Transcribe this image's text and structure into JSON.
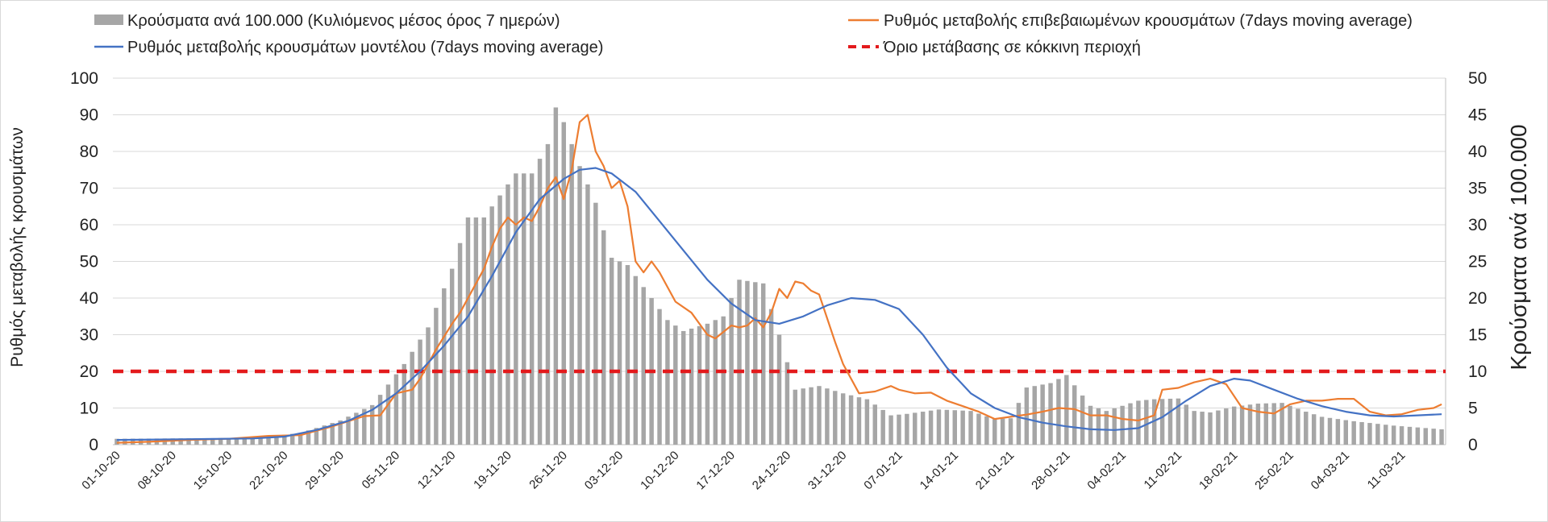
{
  "chart_data": {
    "type": "bar",
    "legend": {
      "placement": "top",
      "items": [
        {
          "label": "Κρούσματα ανά 100.000 (Κυλιόμενος μέσος όρος 7 ημερών)",
          "kind": "bar",
          "color": "#a6a6a6"
        },
        {
          "label": "Ρυθμός μεταβολής επιβεβαιωμένων κρουσμάτων (7days moving average)",
          "kind": "line",
          "color": "#ed7d31"
        },
        {
          "label": "Ρυθμός μεταβολής κρουσμάτων μοντέλου (7days moving average)",
          "kind": "line",
          "color": "#4472c4"
        },
        {
          "label": "Όριο μετάβασης σε κόκκινη περιοχή",
          "kind": "dashed",
          "color": "#e31a1c"
        }
      ]
    },
    "ylabel": "Ρυθμός μεταβολής κρουσμάτων",
    "y2label": "Κρούσματα ανά 100.000",
    "ylim": [
      0,
      100
    ],
    "y2lim": [
      0,
      50
    ],
    "yticks": [
      "0",
      "10",
      "20",
      "30",
      "40",
      "50",
      "60",
      "70",
      "80",
      "90",
      "100"
    ],
    "y2ticks": [
      "0",
      "5",
      "10",
      "15",
      "20",
      "25",
      "30",
      "35",
      "40",
      "45",
      "50"
    ],
    "grid": true,
    "x_start": "2020-10-01",
    "x_end": "2021-03-16",
    "xticks": [
      "01-10-20",
      "08-10-20",
      "15-10-20",
      "22-10-20",
      "29-10-20",
      "05-11-20",
      "12-11-20",
      "19-11-20",
      "26-11-20",
      "03-12-20",
      "10-12-20",
      "17-12-20",
      "24-12-20",
      "31-12-20",
      "07-01-21",
      "14-01-21",
      "21-01-21",
      "28-01-21",
      "04-02-21",
      "11-02-21",
      "18-02-21",
      "25-02-21",
      "04-03-21",
      "11-03-21"
    ],
    "threshold": 20,
    "bar_keypoints": [
      [
        "2020-10-01",
        0.8
      ],
      [
        "2020-10-15",
        0.9
      ],
      [
        "2020-10-20",
        1.1
      ],
      [
        "2020-10-24",
        1.6
      ],
      [
        "2020-10-29",
        3.3
      ],
      [
        "2020-11-02",
        5.4
      ],
      [
        "2020-11-06",
        11
      ],
      [
        "2020-11-09",
        16
      ],
      [
        "2020-11-12",
        24
      ],
      [
        "2020-11-14",
        31
      ],
      [
        "2020-11-16",
        31
      ],
      [
        "2020-11-20",
        37
      ],
      [
        "2020-11-22",
        37
      ],
      [
        "2020-11-24",
        41
      ],
      [
        "2020-11-25",
        46
      ],
      [
        "2020-11-26",
        44
      ],
      [
        "2020-11-28",
        38
      ],
      [
        "2020-11-30",
        33
      ],
      [
        "2020-12-02",
        25.5
      ],
      [
        "2020-12-04",
        24.5
      ],
      [
        "2020-12-07",
        20
      ],
      [
        "2020-12-09",
        17
      ],
      [
        "2020-12-11",
        15.5
      ],
      [
        "2020-12-14",
        16.5
      ],
      [
        "2020-12-16",
        17.5
      ],
      [
        "2020-12-18",
        22.5
      ],
      [
        "2020-12-21",
        22
      ],
      [
        "2020-12-23",
        15
      ],
      [
        "2020-12-25",
        7.5
      ],
      [
        "2020-12-28",
        8
      ],
      [
        "2020-12-31",
        7
      ],
      [
        "2021-01-03",
        6.2
      ],
      [
        "2021-01-06",
        4
      ],
      [
        "2021-01-08",
        4.2
      ],
      [
        "2021-01-12",
        4.8
      ],
      [
        "2021-01-16",
        4.6
      ],
      [
        "2021-01-19",
        3.5
      ],
      [
        "2021-01-21",
        3.6
      ],
      [
        "2021-01-23",
        7.8
      ],
      [
        "2021-01-26",
        8.4
      ],
      [
        "2021-01-28",
        9.5
      ],
      [
        "2021-01-31",
        5.3
      ],
      [
        "2021-02-02",
        4.6
      ],
      [
        "2021-02-04",
        5.3
      ],
      [
        "2021-02-06",
        6
      ],
      [
        "2021-02-08",
        6.2
      ],
      [
        "2021-02-11",
        6.3
      ],
      [
        "2021-02-13",
        4.6
      ],
      [
        "2021-02-15",
        4.4
      ],
      [
        "2021-02-18",
        5.2
      ],
      [
        "2021-02-21",
        5.6
      ],
      [
        "2021-02-24",
        5.7
      ],
      [
        "2021-02-27",
        4.5
      ],
      [
        "2021-03-01",
        3.8
      ],
      [
        "2021-03-05",
        3.2
      ],
      [
        "2021-03-10",
        2.6
      ],
      [
        "2021-03-16",
        2.1
      ]
    ],
    "series": [
      {
        "name": "Ρυθμός μεταβολής επιβεβαιωμένων κρουσμάτων (7days moving average)",
        "axis": "left",
        "points": [
          [
            "2020-10-01",
            0.5
          ],
          [
            "2020-10-05",
            0.8
          ],
          [
            "2020-10-10",
            1.3
          ],
          [
            "2020-10-15",
            1.6
          ],
          [
            "2020-10-20",
            2.4
          ],
          [
            "2020-10-24",
            2.6
          ],
          [
            "2020-10-28",
            5
          ],
          [
            "2020-11-01",
            7.8
          ],
          [
            "2020-11-03",
            8
          ],
          [
            "2020-11-05",
            14
          ],
          [
            "2020-11-07",
            15
          ],
          [
            "2020-11-08",
            18
          ],
          [
            "2020-11-10",
            26
          ],
          [
            "2020-11-12",
            33
          ],
          [
            "2020-11-13",
            36
          ],
          [
            "2020-11-15",
            44
          ],
          [
            "2020-11-16",
            48
          ],
          [
            "2020-11-17",
            54
          ],
          [
            "2020-11-18",
            59
          ],
          [
            "2020-11-19",
            62
          ],
          [
            "2020-11-20",
            60
          ],
          [
            "2020-11-21",
            62
          ],
          [
            "2020-11-22",
            61
          ],
          [
            "2020-11-23",
            65
          ],
          [
            "2020-11-24",
            70
          ],
          [
            "2020-11-25",
            73
          ],
          [
            "2020-11-26",
            67
          ],
          [
            "2020-11-27",
            75
          ],
          [
            "2020-11-28",
            88
          ],
          [
            "2020-11-29",
            90
          ],
          [
            "2020-11-30",
            80
          ],
          [
            "2020-12-01",
            76
          ],
          [
            "2020-12-02",
            70
          ],
          [
            "2020-12-03",
            72
          ],
          [
            "2020-12-04",
            65
          ],
          [
            "2020-12-05",
            50
          ],
          [
            "2020-12-06",
            47
          ],
          [
            "2020-12-07",
            50
          ],
          [
            "2020-12-08",
            47
          ],
          [
            "2020-12-10",
            39
          ],
          [
            "2020-12-12",
            36
          ],
          [
            "2020-12-14",
            30
          ],
          [
            "2020-12-15",
            29
          ],
          [
            "2020-12-17",
            32.5
          ],
          [
            "2020-12-18",
            32
          ],
          [
            "2020-12-19",
            32.5
          ],
          [
            "2020-12-20",
            34.5
          ],
          [
            "2020-12-21",
            32
          ],
          [
            "2020-12-22",
            36
          ],
          [
            "2020-12-23",
            42.5
          ],
          [
            "2020-12-24",
            40
          ],
          [
            "2020-12-25",
            44.5
          ],
          [
            "2020-12-26",
            44
          ],
          [
            "2020-12-27",
            42
          ],
          [
            "2020-12-28",
            41
          ],
          [
            "2020-12-30",
            28
          ],
          [
            "2020-12-31",
            22
          ],
          [
            "2021-01-02",
            14
          ],
          [
            "2021-01-04",
            14.5
          ],
          [
            "2021-01-06",
            16
          ],
          [
            "2021-01-07",
            15
          ],
          [
            "2021-01-09",
            14
          ],
          [
            "2021-01-11",
            14.2
          ],
          [
            "2021-01-13",
            12
          ],
          [
            "2021-01-15",
            10.5
          ],
          [
            "2021-01-17",
            9
          ],
          [
            "2021-01-19",
            7
          ],
          [
            "2021-01-21",
            7.6
          ],
          [
            "2021-01-23",
            8.2
          ],
          [
            "2021-01-25",
            9
          ],
          [
            "2021-01-27",
            10
          ],
          [
            "2021-01-29",
            9.7
          ],
          [
            "2021-01-31",
            8
          ],
          [
            "2021-02-02",
            8
          ],
          [
            "2021-02-04",
            7
          ],
          [
            "2021-02-06",
            6.6
          ],
          [
            "2021-02-08",
            8
          ],
          [
            "2021-02-09",
            15
          ],
          [
            "2021-02-11",
            15.5
          ],
          [
            "2021-02-13",
            17
          ],
          [
            "2021-02-15",
            18
          ],
          [
            "2021-02-17",
            16.5
          ],
          [
            "2021-02-19",
            10
          ],
          [
            "2021-02-21",
            9
          ],
          [
            "2021-02-23",
            8.5
          ],
          [
            "2021-02-25",
            11
          ],
          [
            "2021-02-27",
            12
          ],
          [
            "2021-03-01",
            12
          ],
          [
            "2021-03-03",
            12.5
          ],
          [
            "2021-03-05",
            12.5
          ],
          [
            "2021-03-07",
            9
          ],
          [
            "2021-03-09",
            8
          ],
          [
            "2021-03-11",
            8.3
          ],
          [
            "2021-03-13",
            9.5
          ],
          [
            "2021-03-15",
            10
          ],
          [
            "2021-03-16",
            11
          ]
        ]
      },
      {
        "name": "Ρυθμός μεταβολής κρουσμάτων μοντέλου (7days moving average)",
        "axis": "left",
        "points": [
          [
            "2020-10-01",
            1.3
          ],
          [
            "2020-10-10",
            1.5
          ],
          [
            "2020-10-18",
            1.7
          ],
          [
            "2020-10-22",
            2.2
          ],
          [
            "2020-10-26",
            4
          ],
          [
            "2020-10-30",
            6.5
          ],
          [
            "2020-11-02",
            9.5
          ],
          [
            "2020-11-05",
            14
          ],
          [
            "2020-11-08",
            20
          ],
          [
            "2020-11-11",
            27
          ],
          [
            "2020-11-14",
            35
          ],
          [
            "2020-11-17",
            46
          ],
          [
            "2020-11-20",
            58
          ],
          [
            "2020-11-23",
            67
          ],
          [
            "2020-11-26",
            72.5
          ],
          [
            "2020-11-28",
            75
          ],
          [
            "2020-11-30",
            75.5
          ],
          [
            "2020-12-02",
            74
          ],
          [
            "2020-12-05",
            69
          ],
          [
            "2020-12-08",
            61
          ],
          [
            "2020-12-11",
            53
          ],
          [
            "2020-12-14",
            45
          ],
          [
            "2020-12-17",
            38.5
          ],
          [
            "2020-12-20",
            34
          ],
          [
            "2020-12-23",
            33
          ],
          [
            "2020-12-26",
            35
          ],
          [
            "2020-12-29",
            38
          ],
          [
            "2021-01-01",
            40
          ],
          [
            "2021-01-04",
            39.5
          ],
          [
            "2021-01-07",
            37
          ],
          [
            "2021-01-10",
            30
          ],
          [
            "2021-01-13",
            21
          ],
          [
            "2021-01-16",
            14
          ],
          [
            "2021-01-19",
            10
          ],
          [
            "2021-01-22",
            7.5
          ],
          [
            "2021-01-25",
            6
          ],
          [
            "2021-01-28",
            5
          ],
          [
            "2021-01-31",
            4.2
          ],
          [
            "2021-02-03",
            4
          ],
          [
            "2021-02-06",
            4.5
          ],
          [
            "2021-02-09",
            7.5
          ],
          [
            "2021-02-12",
            12
          ],
          [
            "2021-02-15",
            16
          ],
          [
            "2021-02-18",
            18
          ],
          [
            "2021-02-20",
            17.5
          ],
          [
            "2021-02-23",
            15
          ],
          [
            "2021-02-26",
            12.5
          ],
          [
            "2021-03-01",
            10.5
          ],
          [
            "2021-03-04",
            9
          ],
          [
            "2021-03-07",
            8
          ],
          [
            "2021-03-10",
            7.7
          ],
          [
            "2021-03-13",
            8
          ],
          [
            "2021-03-16",
            8.3
          ]
        ]
      }
    ]
  }
}
